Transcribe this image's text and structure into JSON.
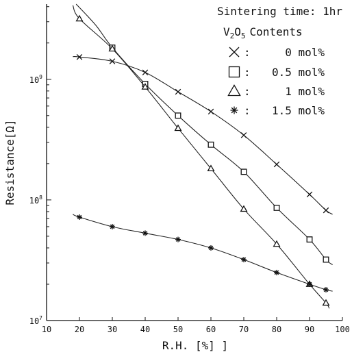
{
  "chart_data": {
    "type": "line",
    "title": "Sintering time: 1hr",
    "legend_title": "Contents",
    "legend_title_prefix": "V",
    "legend_title_sub1": "2",
    "legend_title_o": "O",
    "legend_title_sub2": "5",
    "legend_colon": ":",
    "legend_placement": "top-right",
    "xlabel": "R.H. [%] ]",
    "ylabel": "Resistance[Ω]",
    "xlim": [
      10,
      100
    ],
    "ylim": [
      10000000,
      4200000000
    ],
    "y_scale": "log",
    "grid": false,
    "x_ticks": [
      10,
      20,
      30,
      40,
      50,
      60,
      70,
      80,
      90,
      100
    ],
    "x_tick_labels": [
      "10",
      "20",
      "30",
      "40",
      "50",
      "60",
      "70",
      "80",
      "90",
      "100"
    ],
    "y_ticks": [
      {
        "value": 10000000,
        "base": "10",
        "exp": "7"
      },
      {
        "value": 100000000,
        "base": "10",
        "exp": "8"
      },
      {
        "value": 1000000000,
        "base": "10",
        "exp": "9"
      }
    ],
    "series": [
      {
        "name": "0 mol%",
        "marker": "x",
        "x": [
          20,
          30,
          40,
          50,
          60,
          70,
          80,
          90,
          95
        ],
        "y": [
          1530000000,
          1410000000,
          1140000000,
          788000000,
          540000000,
          344000000,
          197000000,
          111000000,
          82000000
        ],
        "curve": [
          [
            18,
            1540000000
          ],
          [
            20,
            1530000000
          ],
          [
            30,
            1410000000
          ],
          [
            40,
            1140000000
          ],
          [
            50,
            788000000
          ],
          [
            60,
            540000000
          ],
          [
            70,
            344000000
          ],
          [
            80,
            197000000
          ],
          [
            90,
            111000000
          ],
          [
            95,
            82000000
          ],
          [
            97,
            76000000
          ]
        ]
      },
      {
        "name": "0.5 mol%",
        "marker": "square",
        "x": [
          30,
          40,
          50,
          60,
          70,
          80,
          90,
          95
        ],
        "y": [
          1830000000,
          915000000,
          500000000,
          287000000,
          171000000,
          86000000,
          47000000,
          32000000
        ],
        "curve": [
          [
            19,
            4200000000
          ],
          [
            25,
            2800000000
          ],
          [
            30,
            1830000000
          ],
          [
            40,
            915000000
          ],
          [
            50,
            500000000
          ],
          [
            60,
            287000000
          ],
          [
            70,
            171000000
          ],
          [
            80,
            86000000
          ],
          [
            90,
            47000000
          ],
          [
            95,
            32000000
          ],
          [
            97,
            29000000
          ]
        ]
      },
      {
        "name": "1 mol%",
        "marker": "triangle",
        "x": [
          20,
          30,
          40,
          50,
          60,
          70,
          80,
          90,
          95
        ],
        "y": [
          3180000000,
          1790000000,
          865000000,
          393000000,
          182000000,
          84000000,
          43000000,
          20000000,
          14000000
        ],
        "curve": [
          [
            18,
            4100000000
          ],
          [
            20,
            3180000000
          ],
          [
            30,
            1790000000
          ],
          [
            40,
            865000000
          ],
          [
            50,
            393000000
          ],
          [
            60,
            182000000
          ],
          [
            70,
            84000000
          ],
          [
            80,
            43000000
          ],
          [
            90,
            20000000
          ],
          [
            95,
            14000000
          ],
          [
            96,
            12600000
          ]
        ]
      },
      {
        "name": "1.5 mol%",
        "marker": "asterisk",
        "x": [
          20,
          30,
          40,
          50,
          60,
          70,
          80,
          90,
          95
        ],
        "y": [
          72000000,
          60000000,
          53000000,
          47000000,
          40000000,
          32000000,
          25000000,
          20000000,
          18000000
        ],
        "curve": [
          [
            18,
            76000000
          ],
          [
            20,
            72000000
          ],
          [
            30,
            60000000
          ],
          [
            40,
            53000000
          ],
          [
            50,
            47000000
          ],
          [
            60,
            40000000
          ],
          [
            70,
            32000000
          ],
          [
            80,
            25000000
          ],
          [
            90,
            20000000
          ],
          [
            95,
            18000000
          ],
          [
            97,
            17500000
          ]
        ]
      }
    ]
  }
}
